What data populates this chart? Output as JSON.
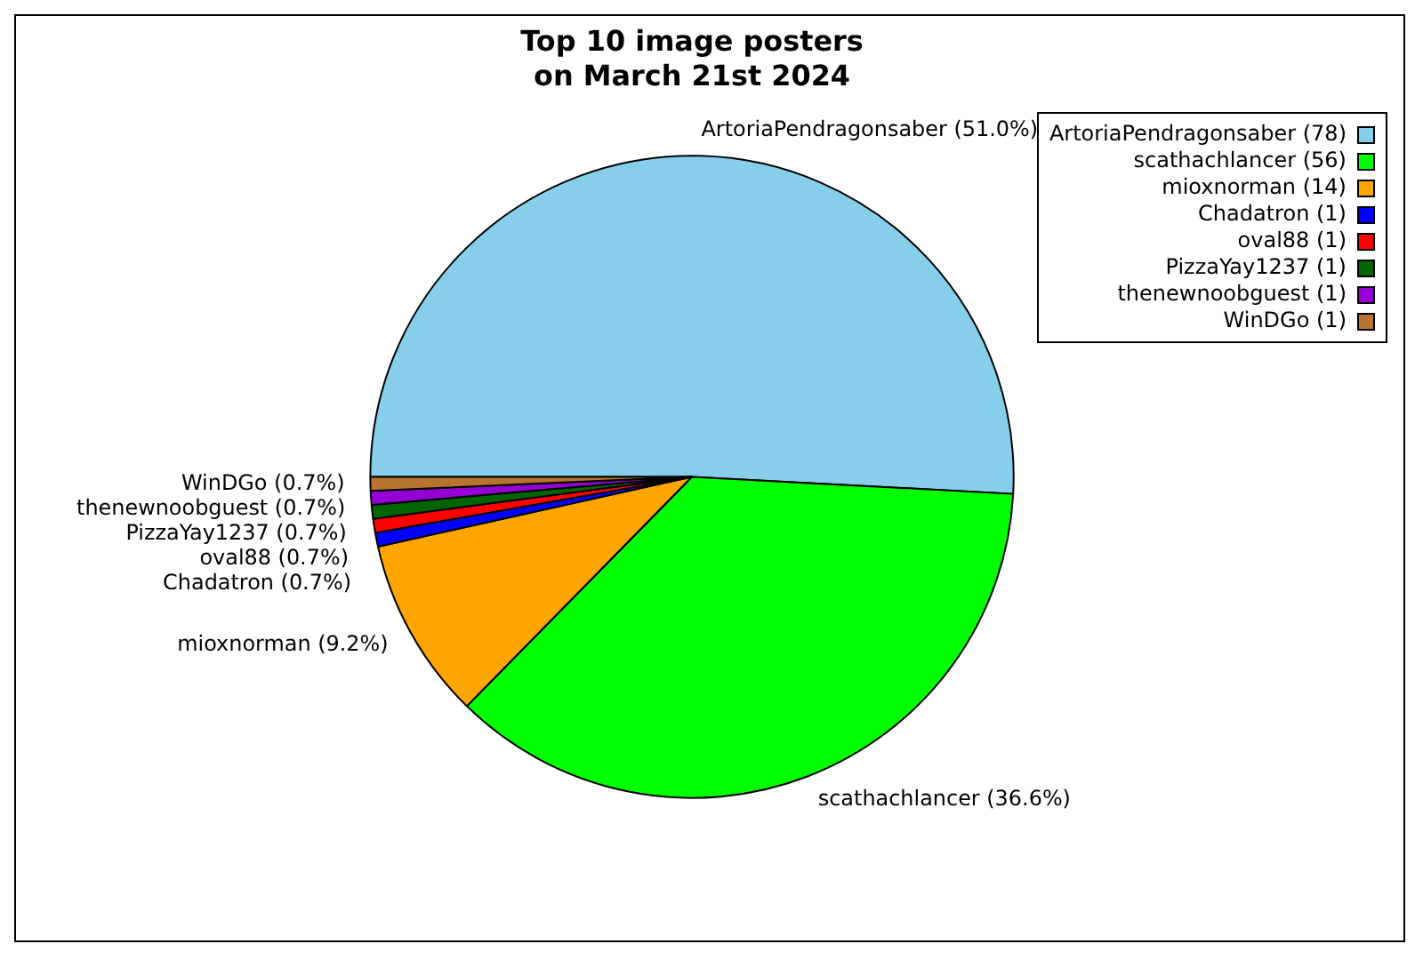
{
  "chart_data": {
    "type": "pie",
    "title": "Top 10 image posters\non March 21st 2024",
    "categories": [
      "ArtoriaPendragonsaber (78)",
      "scathachlancer (56)",
      "mioxnorman (14)",
      "Chadatron (1)",
      "oval88 (1)",
      "PizzaYay1237 (1)",
      "thenewnoobguest (1)",
      "WinDGo (1)"
    ],
    "values": [
      51.0,
      36.6,
      9.2,
      0.7,
      0.7,
      0.7,
      0.7,
      0.7
    ],
    "value_labels": [
      "ArtoriaPendragonsaber (51.0%)",
      "scathachlancer (36.6%)",
      "mioxnorman (9.2%)",
      "Chadatron (0.7%)",
      "oval88 (0.7%)",
      "PizzaYay1237 (0.7%)",
      "thenewnoobguest (0.7%)",
      "WinDGo (0.7%)"
    ],
    "colors": [
      "#87ceeb",
      "#00ff00",
      "#ffa500",
      "#0000ff",
      "#ff0000",
      "#006400",
      "#9400d3",
      "#b8732e"
    ],
    "legend": "top right"
  }
}
